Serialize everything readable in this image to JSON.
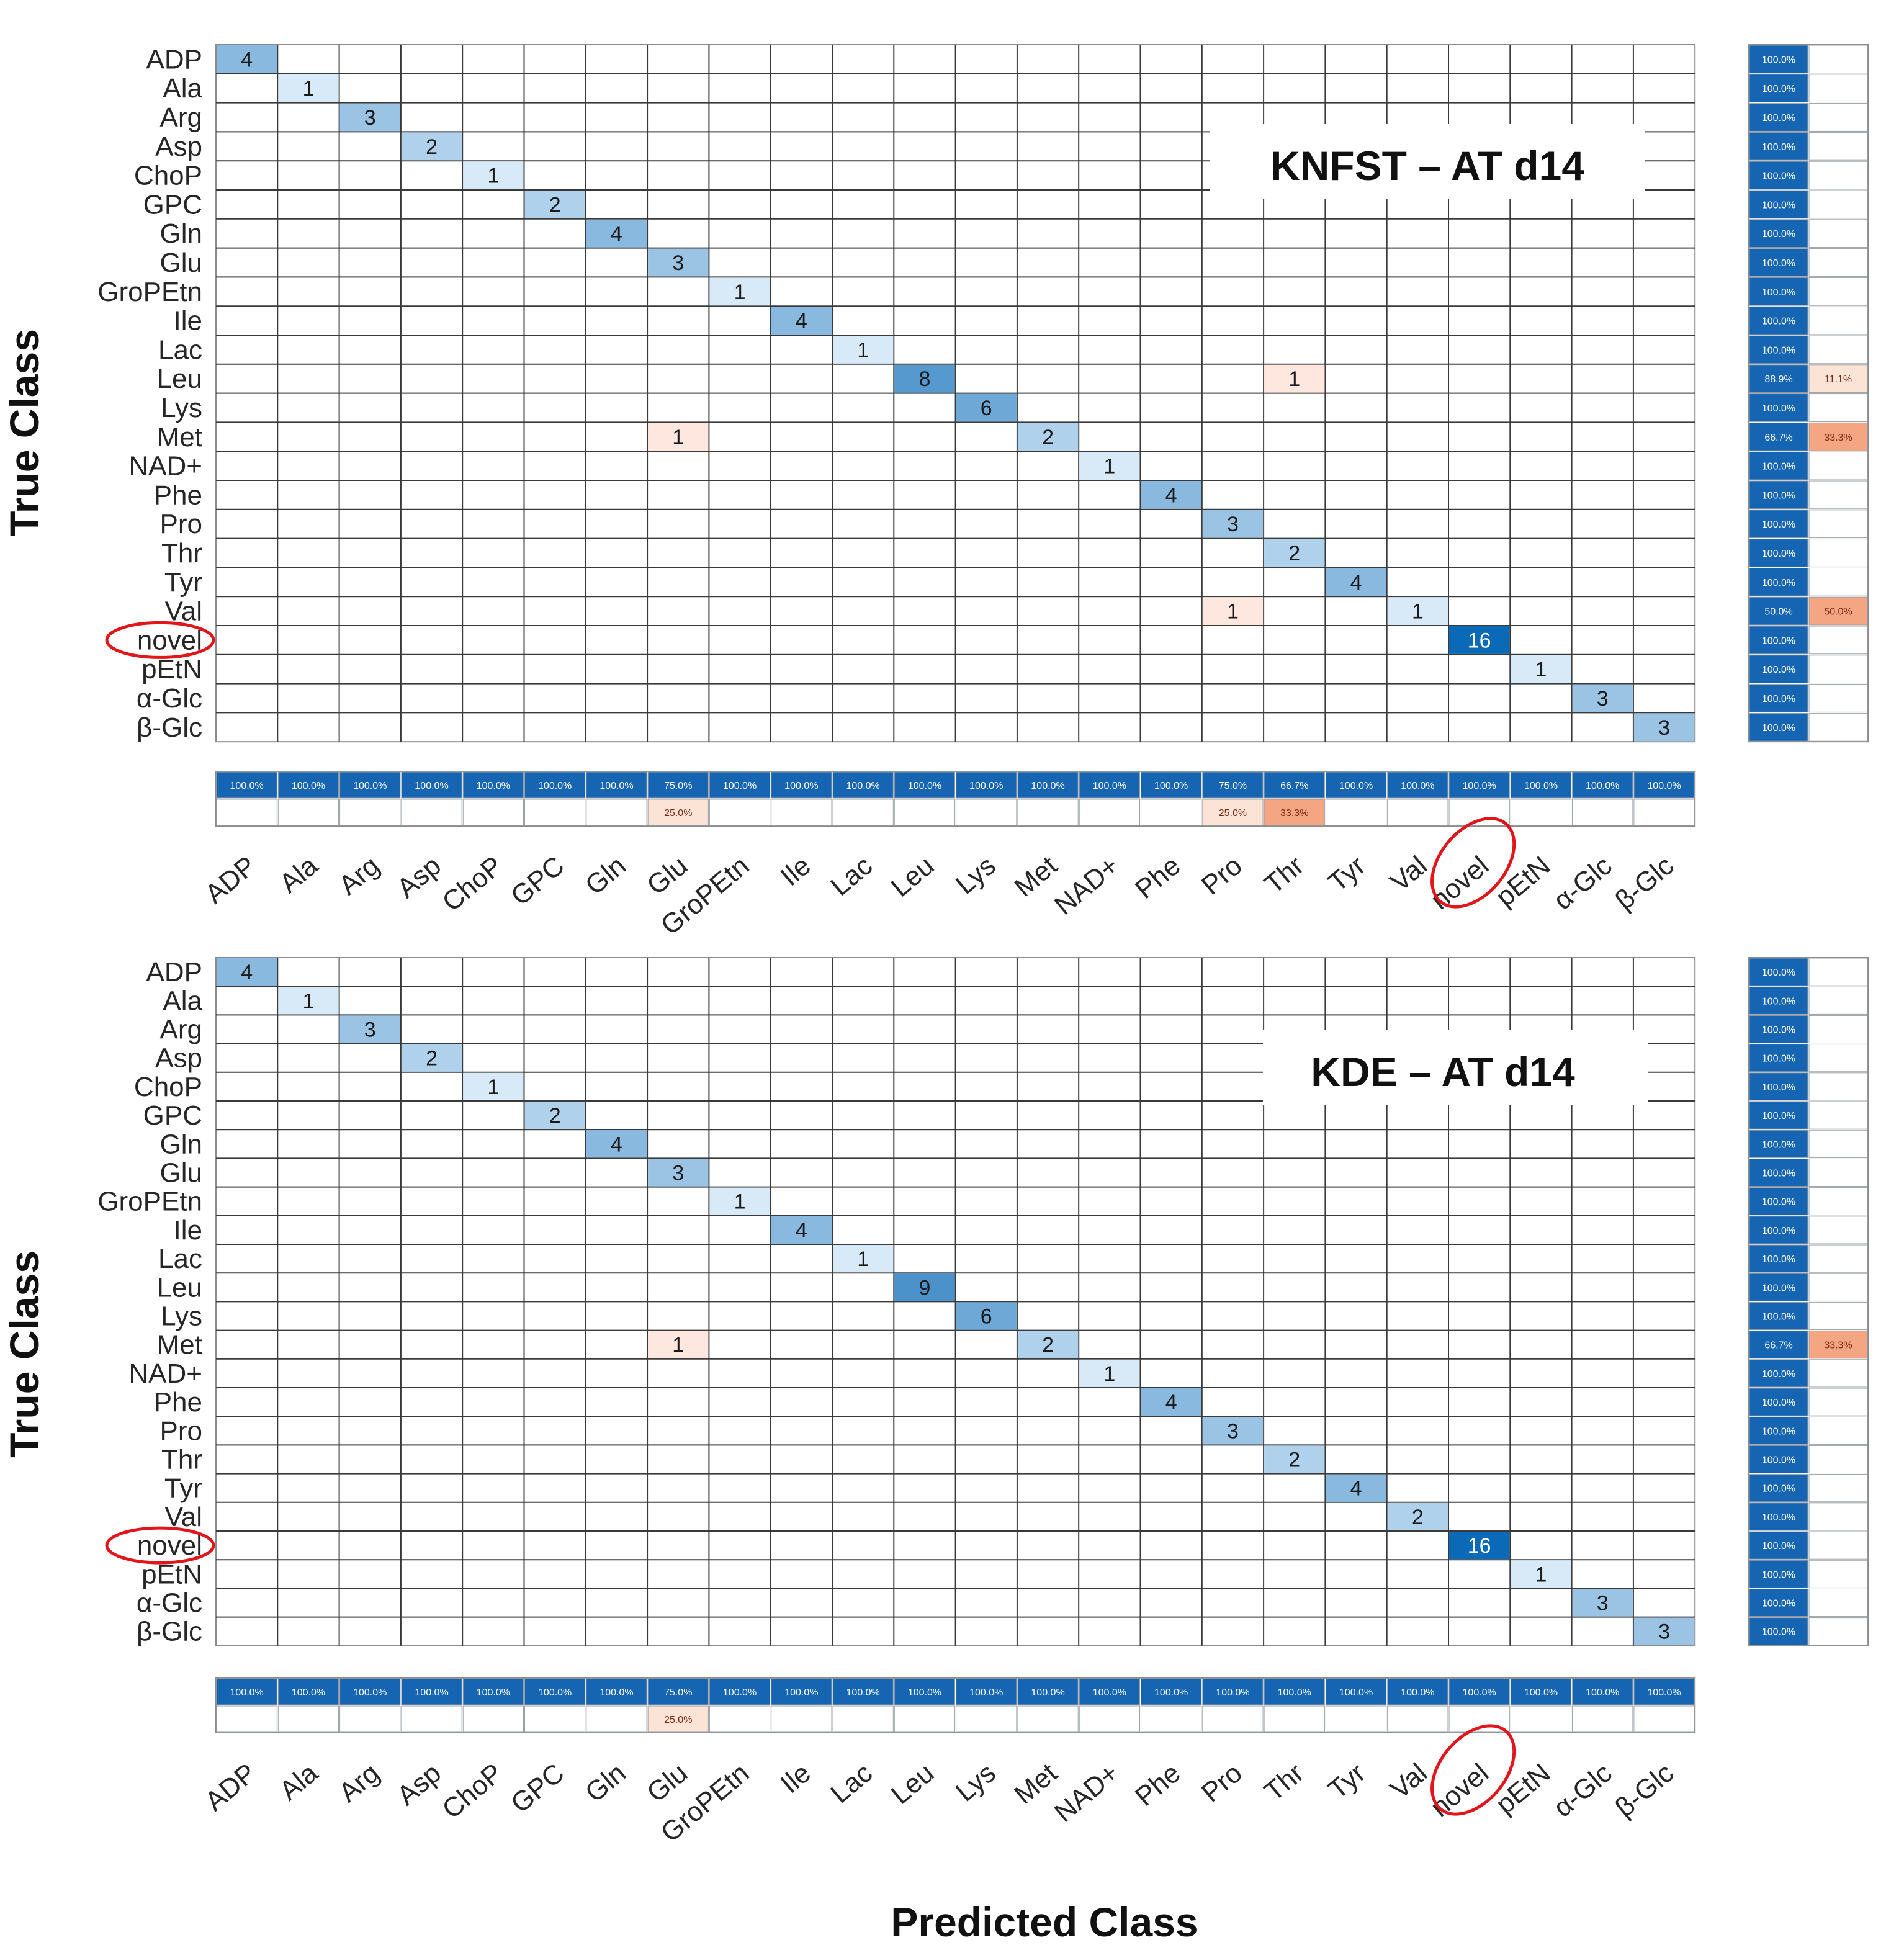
{
  "figure": {
    "xlabel": "Predicted Class",
    "ylabel": "True Class",
    "highlighted_class": "novel"
  },
  "colors": {
    "diag_max": "#0a6ab7",
    "diag_min": "#e3f1fb",
    "error_cell": "#fde7df",
    "pct_blue": "#1565b3",
    "pct_orange_strong": "#f4a582",
    "pct_orange_light": "#fbe3d6",
    "circle": "#e0161b",
    "grid": "#8c8c8c"
  },
  "chart_data": [
    {
      "type": "heatmap",
      "subtype": "confusion_matrix",
      "title": "KNFST – AT d14",
      "classes": [
        "ADP",
        "Ala",
        "Arg",
        "Asp",
        "ChoP",
        "GPC",
        "Gln",
        "Glu",
        "GroPEtn",
        "Ile",
        "Lac",
        "Leu",
        "Lys",
        "Met",
        "NAD+",
        "Phe",
        "Pro",
        "Thr",
        "Tyr",
        "Val",
        "novel",
        "pEtN",
        "α-Glc",
        "β-Glc"
      ],
      "cells": [
        {
          "true": "ADP",
          "pred": "ADP",
          "count": 4
        },
        {
          "true": "Ala",
          "pred": "Ala",
          "count": 1
        },
        {
          "true": "Arg",
          "pred": "Arg",
          "count": 3
        },
        {
          "true": "Asp",
          "pred": "Asp",
          "count": 2
        },
        {
          "true": "ChoP",
          "pred": "ChoP",
          "count": 1
        },
        {
          "true": "GPC",
          "pred": "GPC",
          "count": 2
        },
        {
          "true": "Gln",
          "pred": "Gln",
          "count": 4
        },
        {
          "true": "Glu",
          "pred": "Glu",
          "count": 3
        },
        {
          "true": "GroPEtn",
          "pred": "GroPEtn",
          "count": 1
        },
        {
          "true": "Ile",
          "pred": "Ile",
          "count": 4
        },
        {
          "true": "Lac",
          "pred": "Lac",
          "count": 1
        },
        {
          "true": "Leu",
          "pred": "Leu",
          "count": 8
        },
        {
          "true": "Leu",
          "pred": "Thr",
          "count": 1
        },
        {
          "true": "Lys",
          "pred": "Lys",
          "count": 6
        },
        {
          "true": "Met",
          "pred": "Glu",
          "count": 1
        },
        {
          "true": "Met",
          "pred": "Met",
          "count": 2
        },
        {
          "true": "NAD+",
          "pred": "NAD+",
          "count": 1
        },
        {
          "true": "Phe",
          "pred": "Phe",
          "count": 4
        },
        {
          "true": "Pro",
          "pred": "Pro",
          "count": 3
        },
        {
          "true": "Thr",
          "pred": "Thr",
          "count": 2
        },
        {
          "true": "Tyr",
          "pred": "Tyr",
          "count": 4
        },
        {
          "true": "Val",
          "pred": "Pro",
          "count": 1
        },
        {
          "true": "Val",
          "pred": "Val",
          "count": 1
        },
        {
          "true": "novel",
          "pred": "novel",
          "count": 16
        },
        {
          "true": "pEtN",
          "pred": "pEtN",
          "count": 1
        },
        {
          "true": "α-Glc",
          "pred": "α-Glc",
          "count": 3
        },
        {
          "true": "β-Glc",
          "pred": "β-Glc",
          "count": 3
        }
      ],
      "row_summary": [
        [
          "100.0%",
          ""
        ],
        [
          "100.0%",
          ""
        ],
        [
          "100.0%",
          ""
        ],
        [
          "100.0%",
          ""
        ],
        [
          "100.0%",
          ""
        ],
        [
          "100.0%",
          ""
        ],
        [
          "100.0%",
          ""
        ],
        [
          "100.0%",
          ""
        ],
        [
          "100.0%",
          ""
        ],
        [
          "100.0%",
          ""
        ],
        [
          "100.0%",
          ""
        ],
        [
          "88.9%",
          "11.1%"
        ],
        [
          "100.0%",
          ""
        ],
        [
          "66.7%",
          "33.3%"
        ],
        [
          "100.0%",
          ""
        ],
        [
          "100.0%",
          ""
        ],
        [
          "100.0%",
          ""
        ],
        [
          "100.0%",
          ""
        ],
        [
          "100.0%",
          ""
        ],
        [
          "50.0%",
          "50.0%"
        ],
        [
          "100.0%",
          ""
        ],
        [
          "100.0%",
          ""
        ],
        [
          "100.0%",
          ""
        ],
        [
          "100.0%",
          ""
        ]
      ],
      "col_summary": [
        [
          "100.0%",
          ""
        ],
        [
          "100.0%",
          ""
        ],
        [
          "100.0%",
          ""
        ],
        [
          "100.0%",
          ""
        ],
        [
          "100.0%",
          ""
        ],
        [
          "100.0%",
          ""
        ],
        [
          "100.0%",
          ""
        ],
        [
          "75.0%",
          "25.0%"
        ],
        [
          "100.0%",
          ""
        ],
        [
          "100.0%",
          ""
        ],
        [
          "100.0%",
          ""
        ],
        [
          "100.0%",
          ""
        ],
        [
          "100.0%",
          ""
        ],
        [
          "100.0%",
          ""
        ],
        [
          "100.0%",
          ""
        ],
        [
          "100.0%",
          ""
        ],
        [
          "75.0%",
          "25.0%"
        ],
        [
          "66.7%",
          "33.3%"
        ],
        [
          "100.0%",
          ""
        ],
        [
          "100.0%",
          ""
        ],
        [
          "100.0%",
          ""
        ],
        [
          "100.0%",
          ""
        ],
        [
          "100.0%",
          ""
        ],
        [
          "100.0%",
          ""
        ]
      ]
    },
    {
      "type": "heatmap",
      "subtype": "confusion_matrix",
      "title": "KDE – AT d14",
      "classes": [
        "ADP",
        "Ala",
        "Arg",
        "Asp",
        "ChoP",
        "GPC",
        "Gln",
        "Glu",
        "GroPEtn",
        "Ile",
        "Lac",
        "Leu",
        "Lys",
        "Met",
        "NAD+",
        "Phe",
        "Pro",
        "Thr",
        "Tyr",
        "Val",
        "novel",
        "pEtN",
        "α-Glc",
        "β-Glc"
      ],
      "cells": [
        {
          "true": "ADP",
          "pred": "ADP",
          "count": 4
        },
        {
          "true": "Ala",
          "pred": "Ala",
          "count": 1
        },
        {
          "true": "Arg",
          "pred": "Arg",
          "count": 3
        },
        {
          "true": "Asp",
          "pred": "Asp",
          "count": 2
        },
        {
          "true": "ChoP",
          "pred": "ChoP",
          "count": 1
        },
        {
          "true": "GPC",
          "pred": "GPC",
          "count": 2
        },
        {
          "true": "Gln",
          "pred": "Gln",
          "count": 4
        },
        {
          "true": "Glu",
          "pred": "Glu",
          "count": 3
        },
        {
          "true": "GroPEtn",
          "pred": "GroPEtn",
          "count": 1
        },
        {
          "true": "Ile",
          "pred": "Ile",
          "count": 4
        },
        {
          "true": "Lac",
          "pred": "Lac",
          "count": 1
        },
        {
          "true": "Leu",
          "pred": "Leu",
          "count": 9
        },
        {
          "true": "Lys",
          "pred": "Lys",
          "count": 6
        },
        {
          "true": "Met",
          "pred": "Glu",
          "count": 1
        },
        {
          "true": "Met",
          "pred": "Met",
          "count": 2
        },
        {
          "true": "NAD+",
          "pred": "NAD+",
          "count": 1
        },
        {
          "true": "Phe",
          "pred": "Phe",
          "count": 4
        },
        {
          "true": "Pro",
          "pred": "Pro",
          "count": 3
        },
        {
          "true": "Thr",
          "pred": "Thr",
          "count": 2
        },
        {
          "true": "Tyr",
          "pred": "Tyr",
          "count": 4
        },
        {
          "true": "Val",
          "pred": "Val",
          "count": 2
        },
        {
          "true": "novel",
          "pred": "novel",
          "count": 16
        },
        {
          "true": "pEtN",
          "pred": "pEtN",
          "count": 1
        },
        {
          "true": "α-Glc",
          "pred": "α-Glc",
          "count": 3
        },
        {
          "true": "β-Glc",
          "pred": "β-Glc",
          "count": 3
        }
      ],
      "row_summary": [
        [
          "100.0%",
          ""
        ],
        [
          "100.0%",
          ""
        ],
        [
          "100.0%",
          ""
        ],
        [
          "100.0%",
          ""
        ],
        [
          "100.0%",
          ""
        ],
        [
          "100.0%",
          ""
        ],
        [
          "100.0%",
          ""
        ],
        [
          "100.0%",
          ""
        ],
        [
          "100.0%",
          ""
        ],
        [
          "100.0%",
          ""
        ],
        [
          "100.0%",
          ""
        ],
        [
          "100.0%",
          ""
        ],
        [
          "100.0%",
          ""
        ],
        [
          "66.7%",
          "33.3%"
        ],
        [
          "100.0%",
          ""
        ],
        [
          "100.0%",
          ""
        ],
        [
          "100.0%",
          ""
        ],
        [
          "100.0%",
          ""
        ],
        [
          "100.0%",
          ""
        ],
        [
          "100.0%",
          ""
        ],
        [
          "100.0%",
          ""
        ],
        [
          "100.0%",
          ""
        ],
        [
          "100.0%",
          ""
        ],
        [
          "100.0%",
          ""
        ]
      ],
      "col_summary": [
        [
          "100.0%",
          ""
        ],
        [
          "100.0%",
          ""
        ],
        [
          "100.0%",
          ""
        ],
        [
          "100.0%",
          ""
        ],
        [
          "100.0%",
          ""
        ],
        [
          "100.0%",
          ""
        ],
        [
          "100.0%",
          ""
        ],
        [
          "75.0%",
          "25.0%"
        ],
        [
          "100.0%",
          ""
        ],
        [
          "100.0%",
          ""
        ],
        [
          "100.0%",
          ""
        ],
        [
          "100.0%",
          ""
        ],
        [
          "100.0%",
          ""
        ],
        [
          "100.0%",
          ""
        ],
        [
          "100.0%",
          ""
        ],
        [
          "100.0%",
          ""
        ],
        [
          "100.0%",
          ""
        ],
        [
          "100.0%",
          ""
        ],
        [
          "100.0%",
          ""
        ],
        [
          "100.0%",
          ""
        ],
        [
          "100.0%",
          ""
        ],
        [
          "100.0%",
          ""
        ],
        [
          "100.0%",
          ""
        ],
        [
          "100.0%",
          ""
        ]
      ]
    }
  ]
}
